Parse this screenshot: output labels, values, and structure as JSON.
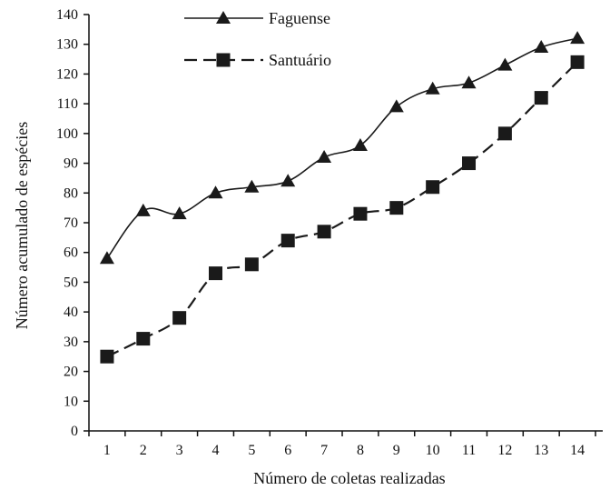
{
  "chart_data": {
    "type": "line",
    "xlabel": "Número de coletas realizadas",
    "ylabel": "Número acumulado de espécies",
    "x": [
      1,
      2,
      3,
      4,
      5,
      6,
      7,
      8,
      9,
      10,
      11,
      12,
      13,
      14
    ],
    "xlim": [
      0.5,
      14.7
    ],
    "ylim": [
      0,
      140
    ],
    "x_ticks": [
      1,
      2,
      3,
      4,
      5,
      6,
      7,
      8,
      9,
      10,
      11,
      12,
      13,
      14
    ],
    "y_ticks": [
      0,
      10,
      20,
      30,
      40,
      50,
      60,
      70,
      80,
      90,
      100,
      110,
      120,
      130,
      140
    ],
    "grid": false,
    "legend_position": "top-center",
    "series": [
      {
        "name": "Faguense",
        "marker": "triangle",
        "line_style": "solid",
        "color": "#1a1a1a",
        "values": [
          58,
          74,
          73,
          80,
          82,
          84,
          92,
          96,
          109,
          115,
          117,
          123,
          129,
          132
        ]
      },
      {
        "name": "Santuário",
        "marker": "square",
        "line_style": "dashed",
        "color": "#1a1a1a",
        "values": [
          25,
          31,
          38,
          53,
          56,
          64,
          67,
          73,
          75,
          82,
          90,
          100,
          112,
          124
        ]
      }
    ]
  }
}
